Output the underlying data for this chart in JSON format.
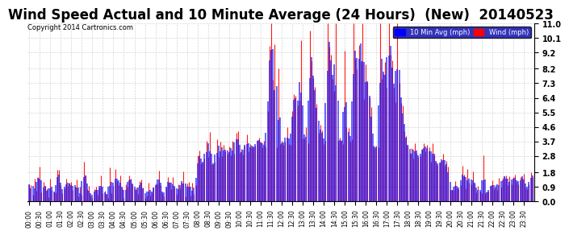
{
  "title": "Wind Speed Actual and 10 Minute Average (24 Hours)  (New)  20140523",
  "copyright": "Copyright 2014 Cartronics.com",
  "legend_blue_label": "10 Min Avg (mph)",
  "legend_red_label": "Wind (mph)",
  "yticks": [
    0.0,
    0.9,
    1.8,
    2.8,
    3.7,
    4.6,
    5.5,
    6.4,
    7.3,
    8.2,
    9.2,
    10.1,
    11.0
  ],
  "ymax": 11.0,
  "ymin": 0.0,
  "background_color": "#ffffff",
  "plot_bg_color": "#ffffff",
  "grid_color": "#cccccc",
  "bar_color_red": "#ff0000",
  "bar_color_dark": "#333333",
  "line_color_blue": "#0000ff",
  "title_fontsize": 12,
  "num_points": 288
}
